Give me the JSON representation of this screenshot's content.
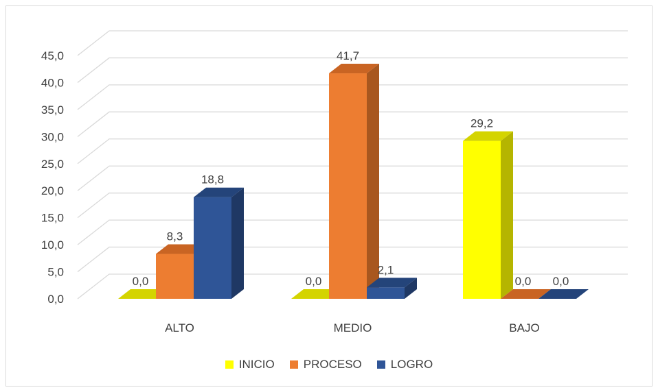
{
  "chart_data": {
    "type": "bar",
    "style": "3d-clustered-column",
    "categories": [
      "ALTO",
      "MEDIO",
      "BAJO"
    ],
    "series": [
      {
        "name": "INICIO",
        "values": [
          0.0,
          0.0,
          29.2
        ],
        "color": "#FFFF00",
        "side_color": "#B5B500",
        "top_color": "#D4D400"
      },
      {
        "name": "PROCESO",
        "values": [
          8.3,
          41.7,
          0.0
        ],
        "color": "#ED7D31",
        "side_color": "#A8571F",
        "top_color": "#C96423"
      },
      {
        "name": "LOGRO",
        "values": [
          18.8,
          2.1,
          0.0
        ],
        "color": "#2F5597",
        "side_color": "#1F3864",
        "top_color": "#24447A"
      }
    ],
    "data_labels": [
      [
        "0,0",
        "0,0",
        "29,2"
      ],
      [
        "8,3",
        "41,7",
        "0,0"
      ],
      [
        "18,8",
        "2,1",
        "0,0"
      ]
    ],
    "y_ticks": [
      "0,0",
      "5,0",
      "10,0",
      "15,0",
      "20,0",
      "25,0",
      "30,0",
      "35,0",
      "40,0",
      "45,0"
    ],
    "ylim": [
      0,
      45
    ],
    "grid": true,
    "legend_position": "bottom"
  }
}
